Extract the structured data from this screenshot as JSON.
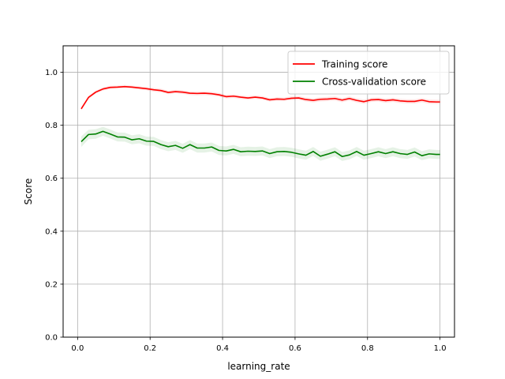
{
  "chart_data": {
    "type": "line",
    "xlabel": "learning_rate",
    "ylabel": "Score",
    "xlim": [
      -0.04,
      1.04
    ],
    "ylim": [
      0.0,
      1.1
    ],
    "grid": true,
    "legend_position": "top-right",
    "x_ticks": [
      0.0,
      0.2,
      0.4,
      0.6,
      0.8,
      1.0
    ],
    "x_tick_labels": [
      "0.0",
      "0.2",
      "0.4",
      "0.6",
      "0.8",
      "1.0"
    ],
    "y_ticks": [
      0.0,
      0.2,
      0.4,
      0.6,
      0.8,
      1.0
    ],
    "y_tick_labels": [
      "0.0",
      "0.2",
      "0.4",
      "0.6",
      "0.8",
      "1.0"
    ],
    "x": [
      0.01,
      0.03,
      0.05,
      0.07,
      0.09,
      0.11,
      0.13,
      0.15,
      0.17,
      0.19,
      0.21,
      0.23,
      0.25,
      0.27,
      0.29,
      0.31,
      0.33,
      0.35,
      0.37,
      0.39,
      0.41,
      0.43,
      0.45,
      0.47,
      0.49,
      0.51,
      0.53,
      0.55,
      0.57,
      0.59,
      0.61,
      0.63,
      0.65,
      0.67,
      0.69,
      0.71,
      0.73,
      0.75,
      0.77,
      0.79,
      0.81,
      0.83,
      0.85,
      0.87,
      0.89,
      0.91,
      0.93,
      0.95,
      0.97,
      0.99,
      1.0
    ],
    "series": [
      {
        "name": "Training score",
        "color": "#ff0000",
        "band_color": "#ff0000",
        "values": [
          0.862,
          0.905,
          0.925,
          0.937,
          0.943,
          0.944,
          0.946,
          0.944,
          0.941,
          0.938,
          0.934,
          0.931,
          0.924,
          0.927,
          0.925,
          0.921,
          0.92,
          0.921,
          0.919,
          0.915,
          0.908,
          0.91,
          0.906,
          0.903,
          0.906,
          0.903,
          0.896,
          0.899,
          0.898,
          0.902,
          0.903,
          0.897,
          0.894,
          0.898,
          0.899,
          0.901,
          0.895,
          0.901,
          0.894,
          0.889,
          0.896,
          0.897,
          0.893,
          0.896,
          0.892,
          0.89,
          0.89,
          0.895,
          0.889,
          0.888,
          0.888
        ],
        "std": [
          0.006,
          0.006,
          0.006,
          0.006,
          0.006,
          0.006,
          0.006,
          0.006,
          0.006,
          0.006,
          0.007,
          0.007,
          0.007,
          0.007,
          0.007,
          0.007,
          0.007,
          0.007,
          0.007,
          0.007,
          0.007,
          0.007,
          0.007,
          0.007,
          0.007,
          0.007,
          0.007,
          0.007,
          0.007,
          0.007,
          0.007,
          0.008,
          0.008,
          0.008,
          0.008,
          0.008,
          0.008,
          0.008,
          0.008,
          0.008,
          0.008,
          0.008,
          0.008,
          0.008,
          0.008,
          0.008,
          0.008,
          0.008,
          0.008,
          0.008,
          0.008
        ]
      },
      {
        "name": "Cross-validation score",
        "color": "#008000",
        "band_color": "#008000",
        "values": [
          0.738,
          0.765,
          0.767,
          0.777,
          0.767,
          0.756,
          0.755,
          0.745,
          0.749,
          0.74,
          0.739,
          0.727,
          0.719,
          0.724,
          0.713,
          0.727,
          0.714,
          0.714,
          0.718,
          0.705,
          0.703,
          0.709,
          0.7,
          0.702,
          0.701,
          0.703,
          0.693,
          0.7,
          0.701,
          0.698,
          0.692,
          0.687,
          0.701,
          0.683,
          0.691,
          0.7,
          0.682,
          0.688,
          0.701,
          0.687,
          0.693,
          0.7,
          0.693,
          0.7,
          0.693,
          0.69,
          0.699,
          0.685,
          0.692,
          0.69,
          0.69
        ],
        "std": [
          0.02,
          0.018,
          0.018,
          0.017,
          0.017,
          0.017,
          0.017,
          0.017,
          0.017,
          0.017,
          0.017,
          0.017,
          0.017,
          0.017,
          0.017,
          0.017,
          0.017,
          0.017,
          0.017,
          0.017,
          0.017,
          0.017,
          0.017,
          0.017,
          0.017,
          0.017,
          0.017,
          0.017,
          0.017,
          0.017,
          0.017,
          0.017,
          0.017,
          0.017,
          0.017,
          0.017,
          0.017,
          0.017,
          0.017,
          0.017,
          0.017,
          0.017,
          0.017,
          0.017,
          0.017,
          0.017,
          0.017,
          0.017,
          0.017,
          0.017,
          0.017
        ]
      }
    ]
  }
}
